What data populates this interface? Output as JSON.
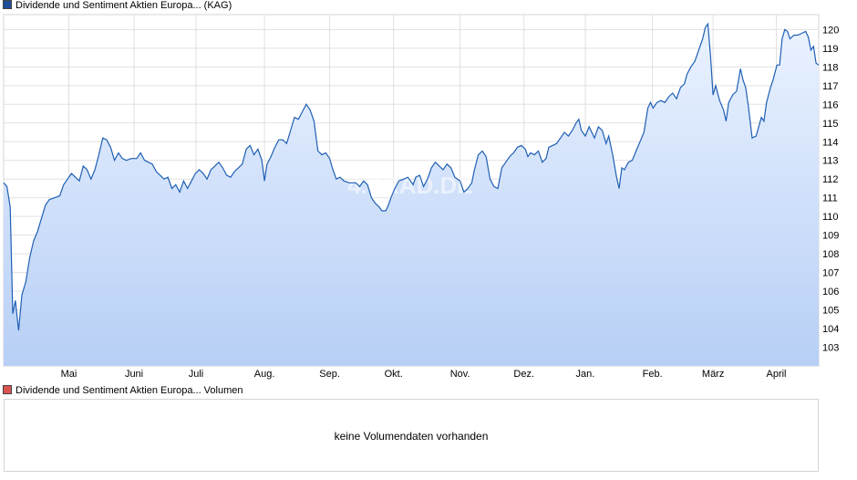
{
  "legend_price": {
    "label": "Dividende und Sentiment Aktien Europa... (KAG)",
    "color": "#1f4e9b"
  },
  "legend_volume": {
    "label": "Dividende und Sentiment Aktien Europa... Volumen",
    "color": "#d9534f"
  },
  "volume_message": "keine Volumendaten vorhanden",
  "watermark": "4.TRAD.DE",
  "chart_data": {
    "type": "area",
    "title": "",
    "xlabel": "",
    "ylabel": "",
    "ylim": [
      102,
      120.8
    ],
    "yticks": [
      103,
      104,
      105,
      106,
      107,
      108,
      109,
      110,
      111,
      112,
      113,
      114,
      115,
      116,
      117,
      118,
      119,
      120
    ],
    "xlim": [
      0,
      12.5
    ],
    "month_ticks": [
      {
        "label": "Mai",
        "x": 1.0
      },
      {
        "label": "Juni",
        "x": 2.0
      },
      {
        "label": "Juli",
        "x": 2.95
      },
      {
        "label": "Aug.",
        "x": 4.0
      },
      {
        "label": "Sep.",
        "x": 5.0
      },
      {
        "label": "Okt.",
        "x": 5.98
      },
      {
        "label": "Nov.",
        "x": 7.0
      },
      {
        "label": "Dez.",
        "x": 7.98
      },
      {
        "label": "Jan.",
        "x": 8.92
      },
      {
        "label": "Feb.",
        "x": 9.95
      },
      {
        "label": "März",
        "x": 10.88
      },
      {
        "label": "April",
        "x": 11.85
      }
    ],
    "line_color": "#1f5fb4",
    "area_top_color": "#eaf2ff",
    "area_bottom_color": "#b7cff5",
    "grid": true,
    "series": [
      {
        "values": [
          [
            0.0,
            111.8
          ],
          [
            0.05,
            111.6
          ],
          [
            0.1,
            110.5
          ],
          [
            0.14,
            104.8
          ],
          [
            0.18,
            105.5
          ],
          [
            0.23,
            103.9
          ],
          [
            0.28,
            105.8
          ],
          [
            0.34,
            106.5
          ],
          [
            0.4,
            107.8
          ],
          [
            0.46,
            108.7
          ],
          [
            0.52,
            109.2
          ],
          [
            0.58,
            109.9
          ],
          [
            0.64,
            110.6
          ],
          [
            0.7,
            110.9
          ],
          [
            0.78,
            111.0
          ],
          [
            0.86,
            111.1
          ],
          [
            0.92,
            111.7
          ],
          [
            0.98,
            112.0
          ],
          [
            1.04,
            112.3
          ],
          [
            1.1,
            112.1
          ],
          [
            1.16,
            111.9
          ],
          [
            1.22,
            112.7
          ],
          [
            1.28,
            112.5
          ],
          [
            1.34,
            112.0
          ],
          [
            1.4,
            112.5
          ],
          [
            1.46,
            113.3
          ],
          [
            1.52,
            114.2
          ],
          [
            1.58,
            114.1
          ],
          [
            1.64,
            113.7
          ],
          [
            1.7,
            113.0
          ],
          [
            1.76,
            113.4
          ],
          [
            1.82,
            113.1
          ],
          [
            1.88,
            113.0
          ],
          [
            1.96,
            113.1
          ],
          [
            2.04,
            113.1
          ],
          [
            2.1,
            113.4
          ],
          [
            2.16,
            113.0
          ],
          [
            2.22,
            112.9
          ],
          [
            2.28,
            112.8
          ],
          [
            2.34,
            112.4
          ],
          [
            2.4,
            112.2
          ],
          [
            2.46,
            112.0
          ],
          [
            2.52,
            112.1
          ],
          [
            2.58,
            111.5
          ],
          [
            2.64,
            111.7
          ],
          [
            2.7,
            111.3
          ],
          [
            2.76,
            111.9
          ],
          [
            2.82,
            111.5
          ],
          [
            2.88,
            111.9
          ],
          [
            2.94,
            112.3
          ],
          [
            3.0,
            112.5
          ],
          [
            3.06,
            112.3
          ],
          [
            3.12,
            112.0
          ],
          [
            3.18,
            112.5
          ],
          [
            3.24,
            112.7
          ],
          [
            3.3,
            112.9
          ],
          [
            3.36,
            112.6
          ],
          [
            3.42,
            112.2
          ],
          [
            3.48,
            112.1
          ],
          [
            3.54,
            112.4
          ],
          [
            3.6,
            112.6
          ],
          [
            3.66,
            112.8
          ],
          [
            3.72,
            113.6
          ],
          [
            3.78,
            113.8
          ],
          [
            3.84,
            113.3
          ],
          [
            3.9,
            113.6
          ],
          [
            3.96,
            113.0
          ],
          [
            4.0,
            111.9
          ],
          [
            4.04,
            112.8
          ],
          [
            4.1,
            113.2
          ],
          [
            4.16,
            113.7
          ],
          [
            4.22,
            114.1
          ],
          [
            4.28,
            114.1
          ],
          [
            4.34,
            113.9
          ],
          [
            4.4,
            114.6
          ],
          [
            4.46,
            115.3
          ],
          [
            4.52,
            115.2
          ],
          [
            4.58,
            115.6
          ],
          [
            4.64,
            116.0
          ],
          [
            4.7,
            115.7
          ],
          [
            4.76,
            115.1
          ],
          [
            4.82,
            113.5
          ],
          [
            4.88,
            113.3
          ],
          [
            4.94,
            113.4
          ],
          [
            5.0,
            113.1
          ],
          [
            5.04,
            112.6
          ],
          [
            5.1,
            112.0
          ],
          [
            5.16,
            112.1
          ],
          [
            5.22,
            111.9
          ],
          [
            5.3,
            111.8
          ],
          [
            5.4,
            111.8
          ],
          [
            5.46,
            111.6
          ],
          [
            5.52,
            111.9
          ],
          [
            5.58,
            111.7
          ],
          [
            5.64,
            111.0
          ],
          [
            5.7,
            110.7
          ],
          [
            5.76,
            110.5
          ],
          [
            5.8,
            110.3
          ],
          [
            5.86,
            110.3
          ],
          [
            5.9,
            110.6
          ],
          [
            5.94,
            111.0
          ],
          [
            6.0,
            111.5
          ],
          [
            6.06,
            111.9
          ],
          [
            6.14,
            112.0
          ],
          [
            6.2,
            112.1
          ],
          [
            6.28,
            111.7
          ],
          [
            6.32,
            112.1
          ],
          [
            6.38,
            112.2
          ],
          [
            6.44,
            111.6
          ],
          [
            6.5,
            112.0
          ],
          [
            6.56,
            112.6
          ],
          [
            6.62,
            112.9
          ],
          [
            6.68,
            112.7
          ],
          [
            6.74,
            112.5
          ],
          [
            6.8,
            112.8
          ],
          [
            6.86,
            112.6
          ],
          [
            6.92,
            112.1
          ],
          [
            7.0,
            111.9
          ],
          [
            7.06,
            111.3
          ],
          [
            7.12,
            111.5
          ],
          [
            7.18,
            111.8
          ],
          [
            7.22,
            112.5
          ],
          [
            7.28,
            113.3
          ],
          [
            7.34,
            113.5
          ],
          [
            7.4,
            113.2
          ],
          [
            7.46,
            112.0
          ],
          [
            7.52,
            111.6
          ],
          [
            7.58,
            111.5
          ],
          [
            7.64,
            112.6
          ],
          [
            7.7,
            112.9
          ],
          [
            7.76,
            113.2
          ],
          [
            7.82,
            113.4
          ],
          [
            7.88,
            113.7
          ],
          [
            7.94,
            113.8
          ],
          [
            8.0,
            113.6
          ],
          [
            8.04,
            113.2
          ],
          [
            8.08,
            113.4
          ],
          [
            8.14,
            113.3
          ],
          [
            8.2,
            113.5
          ],
          [
            8.26,
            112.9
          ],
          [
            8.32,
            113.1
          ],
          [
            8.36,
            113.7
          ],
          [
            8.42,
            113.8
          ],
          [
            8.48,
            113.9
          ],
          [
            8.54,
            114.2
          ],
          [
            8.6,
            114.5
          ],
          [
            8.66,
            114.3
          ],
          [
            8.72,
            114.6
          ],
          [
            8.78,
            115.0
          ],
          [
            8.82,
            115.2
          ],
          [
            8.86,
            114.6
          ],
          [
            8.92,
            114.3
          ],
          [
            8.98,
            114.8
          ],
          [
            9.02,
            114.5
          ],
          [
            9.06,
            114.2
          ],
          [
            9.12,
            114.8
          ],
          [
            9.18,
            114.6
          ],
          [
            9.24,
            113.9
          ],
          [
            9.28,
            114.3
          ],
          [
            9.34,
            113.3
          ],
          [
            9.4,
            112.1
          ],
          [
            9.44,
            111.5
          ],
          [
            9.48,
            112.6
          ],
          [
            9.52,
            112.5
          ],
          [
            9.58,
            112.9
          ],
          [
            9.64,
            113.0
          ],
          [
            9.7,
            113.5
          ],
          [
            9.76,
            114.0
          ],
          [
            9.82,
            114.5
          ],
          [
            9.88,
            115.8
          ],
          [
            9.92,
            116.1
          ],
          [
            9.96,
            115.8
          ],
          [
            10.02,
            116.1
          ],
          [
            10.08,
            116.2
          ],
          [
            10.14,
            116.1
          ],
          [
            10.2,
            116.4
          ],
          [
            10.26,
            116.6
          ],
          [
            10.32,
            116.3
          ],
          [
            10.38,
            116.9
          ],
          [
            10.44,
            117.1
          ],
          [
            10.48,
            117.6
          ],
          [
            10.54,
            118.0
          ],
          [
            10.6,
            118.3
          ],
          [
            10.66,
            118.9
          ],
          [
            10.72,
            119.5
          ],
          [
            10.76,
            120.1
          ],
          [
            10.8,
            120.3
          ],
          [
            10.84,
            118.6
          ],
          [
            10.88,
            116.5
          ],
          [
            10.92,
            117.0
          ],
          [
            10.98,
            116.2
          ],
          [
            11.04,
            115.7
          ],
          [
            11.08,
            115.1
          ],
          [
            11.12,
            116.1
          ],
          [
            11.18,
            116.5
          ],
          [
            11.24,
            116.7
          ],
          [
            11.3,
            117.9
          ],
          [
            11.34,
            117.3
          ],
          [
            11.38,
            116.9
          ],
          [
            11.42,
            115.9
          ],
          [
            11.48,
            114.2
          ],
          [
            11.54,
            114.3
          ],
          [
            11.58,
            114.8
          ],
          [
            11.62,
            115.3
          ],
          [
            11.66,
            115.1
          ],
          [
            11.7,
            116.1
          ],
          [
            11.76,
            116.9
          ],
          [
            11.8,
            117.3
          ],
          [
            11.86,
            118.1
          ],
          [
            11.9,
            118.1
          ],
          [
            11.94,
            119.5
          ],
          [
            11.98,
            120.0
          ],
          [
            12.02,
            119.9
          ],
          [
            12.06,
            119.5
          ],
          [
            12.12,
            119.7
          ],
          [
            12.18,
            119.7
          ],
          [
            12.24,
            119.8
          ],
          [
            12.3,
            119.9
          ],
          [
            12.34,
            119.6
          ],
          [
            12.38,
            118.9
          ],
          [
            12.42,
            119.1
          ],
          [
            12.46,
            118.2
          ],
          [
            12.5,
            118.1
          ]
        ]
      }
    ]
  }
}
